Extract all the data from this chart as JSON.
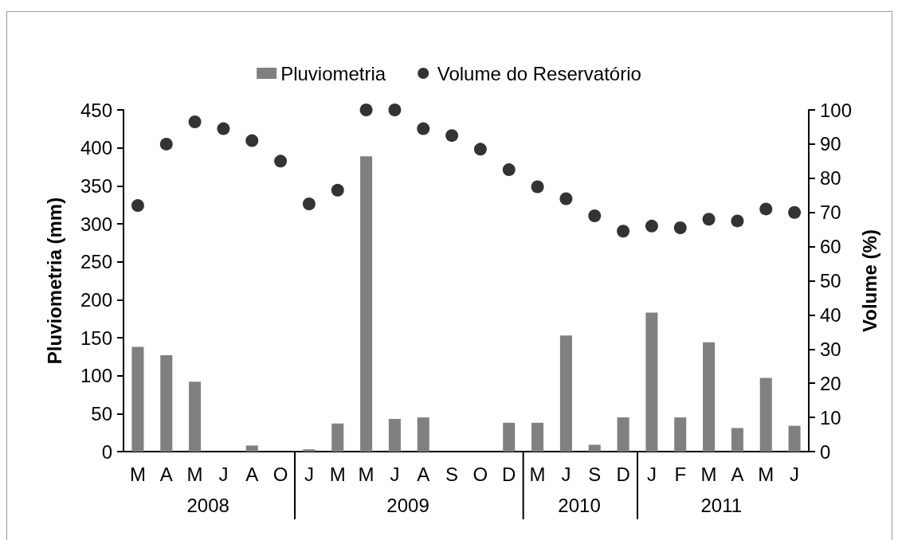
{
  "chart_data": {
    "type": "bar",
    "categories": [
      "M",
      "A",
      "M",
      "J",
      "A",
      "O",
      "J",
      "M",
      "M",
      "J",
      "A",
      "S",
      "O",
      "D",
      "M",
      "J",
      "S",
      "D",
      "J",
      "F",
      "M",
      "A",
      "M",
      "J"
    ],
    "series": [
      {
        "name": "Pluviometria",
        "color": "#808080",
        "values": [
          138,
          127,
          92,
          0,
          8,
          0,
          3,
          37,
          389,
          43,
          45,
          0,
          0,
          38,
          38,
          153,
          9,
          45,
          183,
          45,
          144,
          31,
          97,
          34
        ]
      },
      {
        "name": "Volume do Reservatório",
        "type": "scatter",
        "axis": "y2",
        "color": "#000000",
        "values": [
          72,
          90,
          96.5,
          94.5,
          91,
          85,
          72.5,
          76.5,
          100,
          100,
          94.5,
          92.5,
          88.5,
          82.5,
          77.5,
          74,
          69,
          64.5,
          66,
          65.5,
          68,
          67.5,
          71,
          70
        ]
      }
    ],
    "ylabel": "Pluviometria (mm)",
    "y2label": "Volume (%)",
    "ylim": [
      0,
      450
    ],
    "yticks": [
      0,
      50,
      100,
      150,
      200,
      250,
      300,
      350,
      400,
      450
    ],
    "y2lim": [
      0,
      100
    ],
    "y2ticks": [
      0,
      10,
      20,
      30,
      40,
      50,
      60,
      70,
      80,
      90,
      100
    ],
    "annotations": [
      "2008",
      "2009",
      "2010",
      "2011"
    ],
    "marker": "circle",
    "legend": "top",
    "grid": false
  }
}
